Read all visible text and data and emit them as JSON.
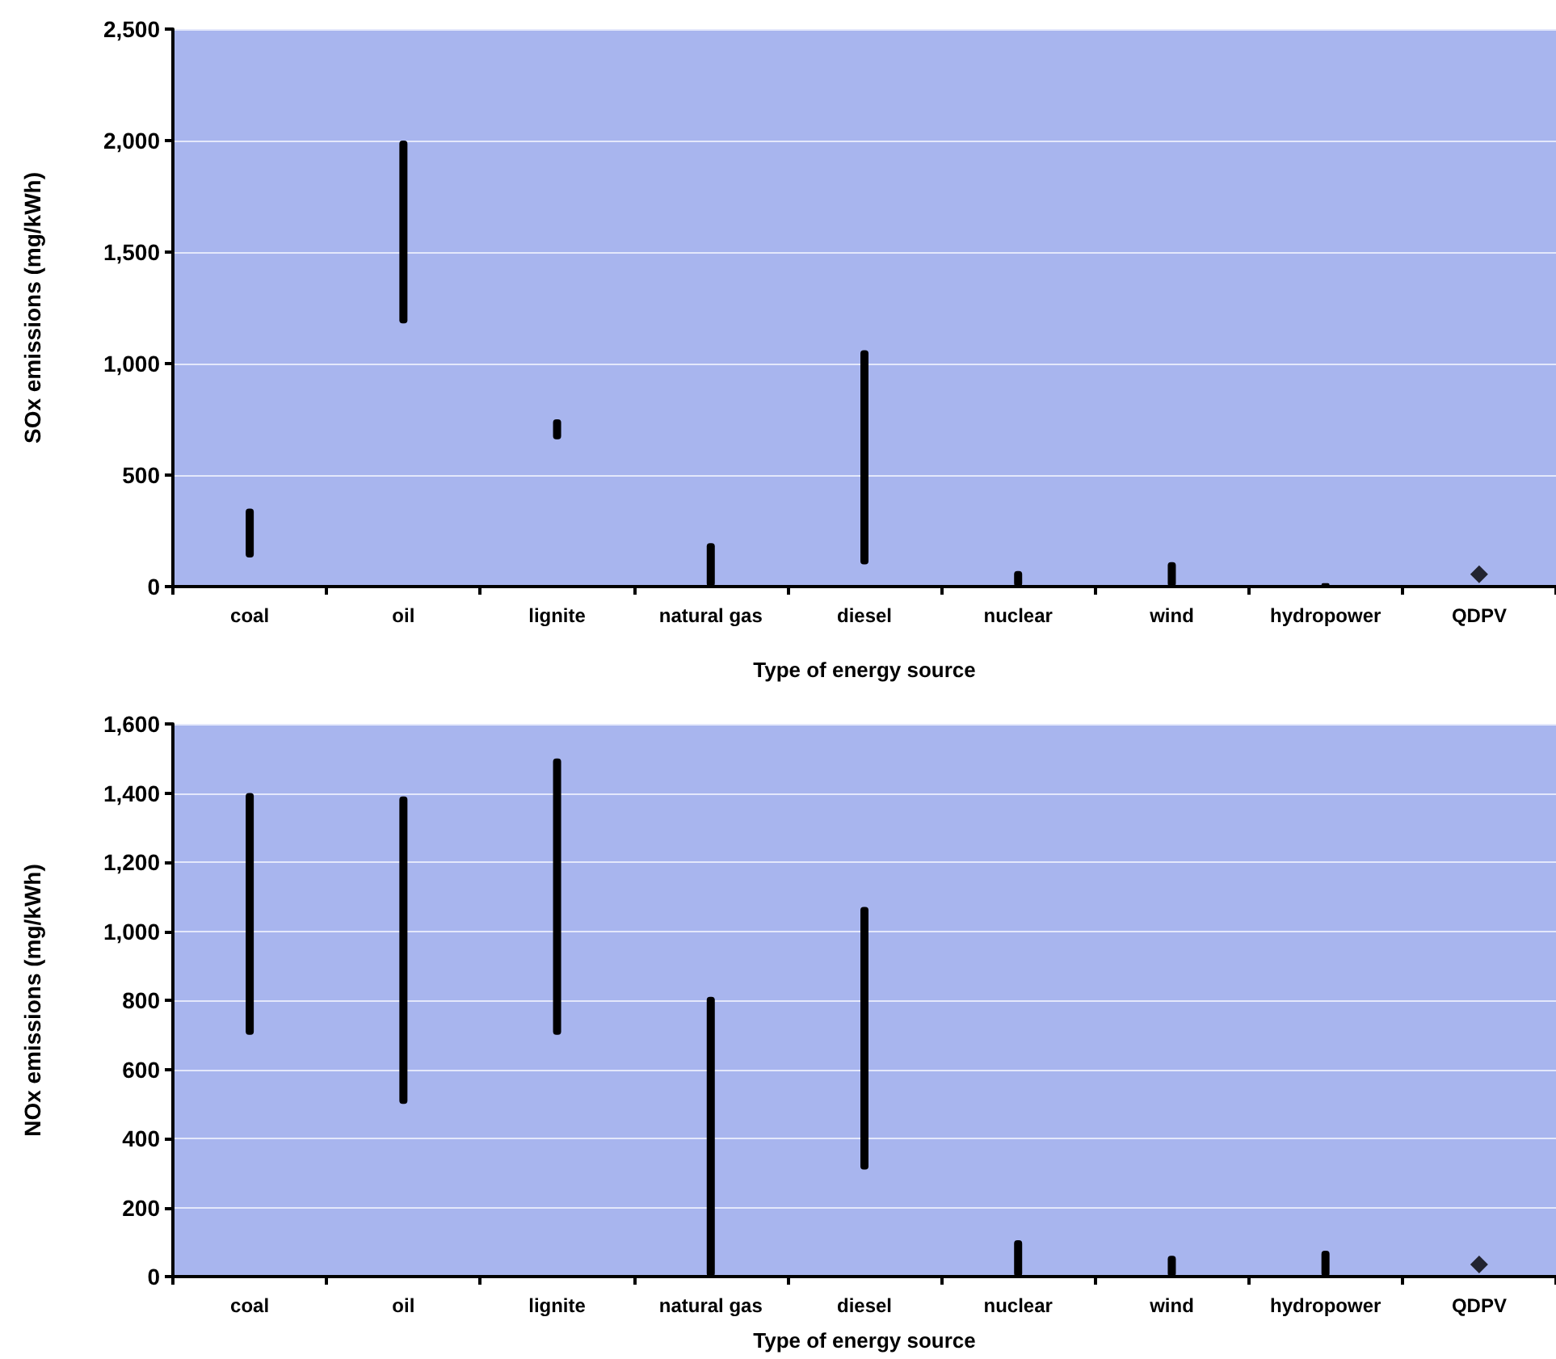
{
  "chart_data": [
    {
      "type": "bar",
      "categories": [
        "coal",
        "oil",
        "lignite",
        "natural gas",
        "diesel",
        "nuclear",
        "wind",
        "hydropower",
        "QDPV"
      ],
      "xlabel": "Type of energy source",
      "ylabel": "SOx emissions (mg/kWh)",
      "ylim": [
        0,
        2500
      ],
      "yticks": [
        0,
        500,
        {
          "value": 1000,
          "label": "1,000"
        },
        {
          "value": 1500,
          "label": "1,500"
        },
        {
          "value": 2000,
          "label": "2,000"
        },
        {
          "value": 2500,
          "label": "2,500"
        }
      ],
      "grid": "y",
      "series": [
        {
          "color": "#000000",
          "base": [
            130,
            1180,
            660,
            0,
            100,
            0,
            0,
            0,
            null
          ],
          "values": [
            220,
            820,
            90,
            195,
            960,
            70,
            110,
            15,
            null
          ]
        },
        {
          "type": "scatter",
          "color": "#000000",
          "marker": "diamond",
          "x": [
            "QDPV"
          ],
          "values": [
            55
          ]
        }
      ]
    },
    {
      "type": "bar",
      "categories": [
        "coal",
        "oil",
        "lignite",
        "natural gas",
        "diesel",
        "nuclear",
        "wind",
        "hydropower",
        "QDPV"
      ],
      "xlabel": "Type of energy source",
      "ylabel": "NOx emissions (mg/kWh)",
      "ylim": [
        0,
        1600
      ],
      "yticks": [
        0,
        200,
        400,
        600,
        800,
        {
          "value": 1000,
          "label": "1,000"
        },
        {
          "value": 1200,
          "label": "1,200"
        },
        {
          "value": 1400,
          "label": "1,400"
        },
        {
          "value": 1600,
          "label": "1,600"
        }
      ],
      "grid": "y",
      "series": [
        {
          "color": "#000000",
          "base": [
            700,
            500,
            700,
            0,
            310,
            0,
            0,
            0,
            null
          ],
          "values": [
            700,
            890,
            800,
            810,
            760,
            105,
            60,
            75,
            null
          ]
        },
        {
          "type": "scatter",
          "color": "#000000",
          "marker": "diamond",
          "x": [
            "QDPV"
          ],
          "values": [
            35
          ]
        }
      ]
    }
  ]
}
